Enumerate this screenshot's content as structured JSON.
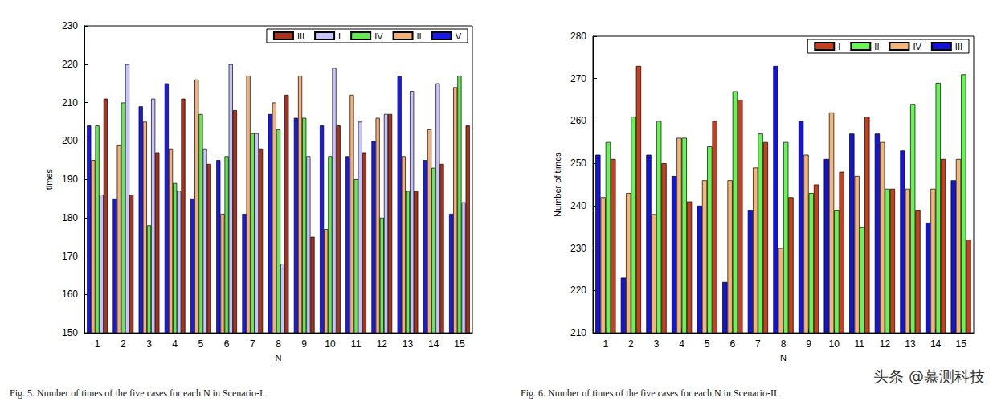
{
  "chart_data": [
    {
      "type": "bar",
      "x_label": "N",
      "y_label": "times",
      "caption": "Fig. 5.   Number of times of the five cases for each N in Scenario-I.",
      "categories": [
        "1",
        "2",
        "3",
        "4",
        "5",
        "6",
        "7",
        "8",
        "9",
        "10",
        "11",
        "12",
        "13",
        "14",
        "15"
      ],
      "series": [
        {
          "name": "III",
          "color": "#a8321c",
          "values": [
            211,
            186,
            197,
            211,
            194,
            208,
            198,
            212,
            175,
            204,
            197,
            207,
            187,
            194,
            204
          ]
        },
        {
          "name": "I",
          "color": "#c8c4ff",
          "values": [
            186,
            220,
            211,
            187,
            198,
            220,
            202,
            168,
            196,
            219,
            205,
            207,
            213,
            215,
            184
          ]
        },
        {
          "name": "IV",
          "color": "#66e855",
          "values": [
            204,
            210,
            178,
            189,
            207,
            196,
            202,
            203,
            206,
            196,
            190,
            180,
            187,
            193,
            217
          ]
        },
        {
          "name": "II",
          "color": "#f4b07a",
          "values": [
            195,
            199,
            205,
            198,
            216,
            181,
            217,
            210,
            217,
            177,
            212,
            206,
            196,
            203,
            214
          ]
        },
        {
          "name": "V",
          "color": "#1a1ae6",
          "values": [
            204,
            185,
            209,
            215,
            185,
            195,
            181,
            207,
            206,
            204,
            196,
            200,
            217,
            195,
            181
          ]
        }
      ],
      "ylim": [
        150,
        230
      ],
      "yticks": [
        150,
        160,
        170,
        180,
        190,
        200,
        210,
        220,
        230
      ],
      "grid": false,
      "legend": "upper right"
    },
    {
      "type": "bar",
      "x_label": "N",
      "y_label": "Number of times",
      "caption": "Fig. 6.   Number of times of the five cases for each N in Scenario-II.",
      "categories": [
        "1",
        "2",
        "3",
        "4",
        "5",
        "6",
        "7",
        "8",
        "9",
        "10",
        "11",
        "12",
        "13",
        "14",
        "15"
      ],
      "series": [
        {
          "name": "I",
          "color": "#c63f1e",
          "values": [
            251,
            273,
            250,
            241,
            260,
            265,
            255,
            242,
            245,
            248,
            261,
            244,
            239,
            251,
            232
          ]
        },
        {
          "name": "II",
          "color": "#66f555",
          "values": [
            255,
            261,
            260,
            256,
            254,
            267,
            257,
            255,
            243,
            239,
            235,
            244,
            264,
            269,
            271
          ]
        },
        {
          "name": "IV",
          "color": "#f5b478",
          "values": [
            242,
            243,
            238,
            256,
            246,
            246,
            249,
            230,
            252,
            262,
            247,
            255,
            244,
            244,
            251
          ]
        },
        {
          "name": "III",
          "color": "#1414d8",
          "values": [
            252,
            223,
            252,
            247,
            240,
            222,
            239,
            273,
            260,
            251,
            257,
            257,
            253,
            236,
            246
          ]
        }
      ],
      "ylim": [
        210,
        280
      ],
      "yticks": [
        210,
        220,
        230,
        240,
        250,
        260,
        270,
        280
      ],
      "grid": false,
      "legend": "upper right"
    }
  ],
  "watermark": "头条 @慕测科技"
}
